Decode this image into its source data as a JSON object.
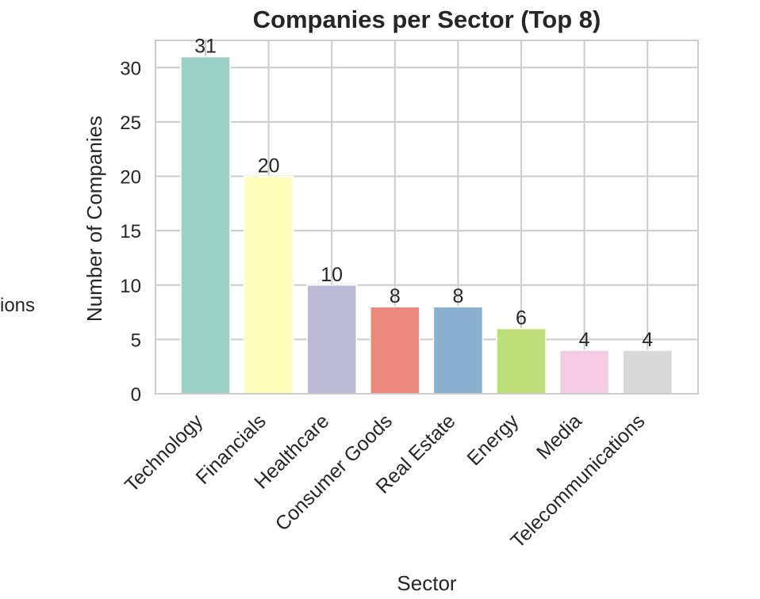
{
  "chart_data": {
    "type": "bar",
    "title": "Companies per Sector (Top 8)",
    "xlabel": "Sector",
    "ylabel": "Number of Companies",
    "categories": [
      "Technology",
      "Financials",
      "Healthcare",
      "Consumer Goods",
      "Real Estate",
      "Energy",
      "Media",
      "Telecommunications"
    ],
    "values": [
      31,
      20,
      10,
      8,
      8,
      6,
      4,
      4
    ],
    "colors": [
      "#9bd1c4",
      "#ffffbd",
      "#bcb9d7",
      "#eb8a7c",
      "#8cb1d0",
      "#bedf7a",
      "#f3cce3",
      "#d9d9d9"
    ],
    "ylim": [
      0,
      32.5
    ],
    "yticks": [
      0,
      5,
      10,
      15,
      20,
      25,
      30
    ],
    "grid": true,
    "clipped_left_text": "ions"
  }
}
